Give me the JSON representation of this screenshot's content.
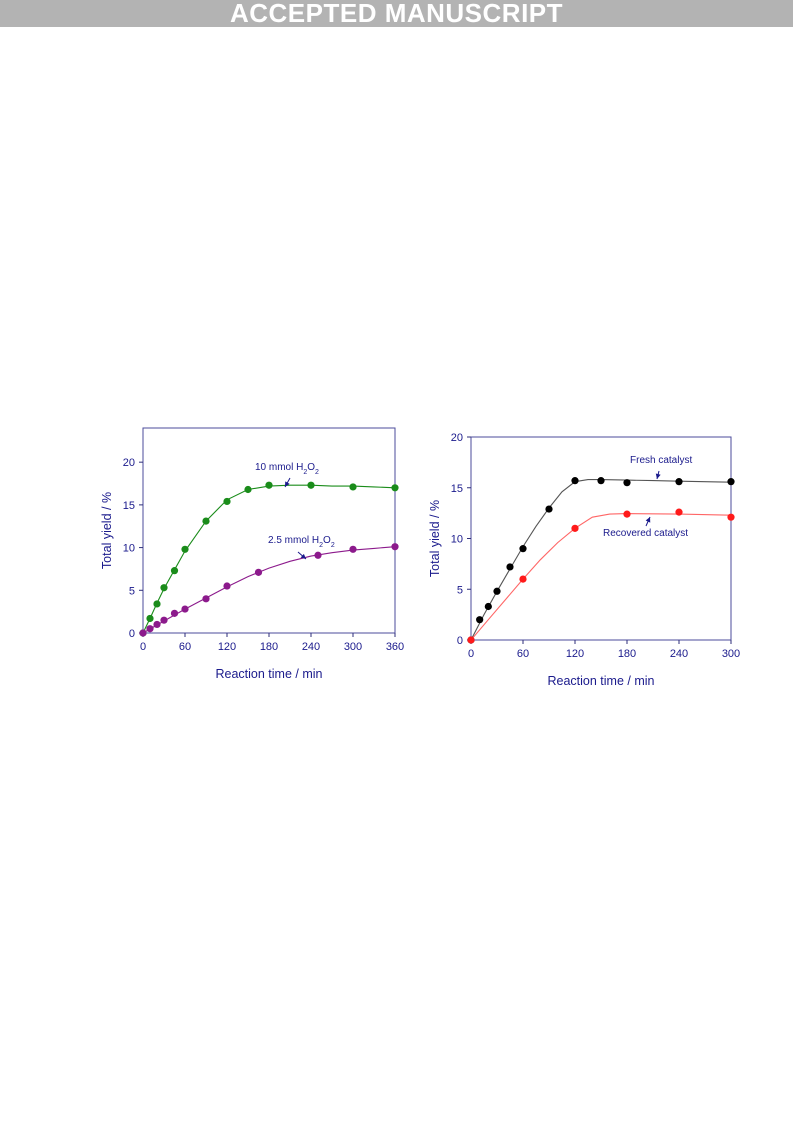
{
  "header": {
    "banner": "ACCEPTED MANUSCRIPT"
  },
  "chart_data": [
    {
      "type": "scatter",
      "xlabel": "Reaction time / min",
      "ylabel": "Total yield / %",
      "xlim": [
        0,
        360
      ],
      "ylim": [
        0,
        24
      ],
      "xticks": [
        0,
        60,
        120,
        180,
        240,
        300,
        360
      ],
      "yticks": [
        0,
        5,
        10,
        15,
        20
      ],
      "grid": false,
      "series": [
        {
          "name": "10 mmol H2O2",
          "color": "#1a8c1a",
          "x": [
            0,
            10,
            20,
            30,
            45,
            60,
            90,
            120,
            150,
            180,
            240,
            300,
            360
          ],
          "y": [
            0,
            1.7,
            3.4,
            5.3,
            7.3,
            9.8,
            13.1,
            15.4,
            16.8,
            17.3,
            17.3,
            17.1,
            17.0
          ]
        },
        {
          "name": "2.5 mmol H2O2",
          "color": "#8c1a8c",
          "x": [
            0,
            10,
            20,
            30,
            45,
            60,
            90,
            120,
            165,
            250,
            300,
            360
          ],
          "y": [
            0,
            0.5,
            1.0,
            1.5,
            2.3,
            2.8,
            4.0,
            5.5,
            7.1,
            9.1,
            9.8,
            10.1
          ]
        }
      ],
      "annotations": [
        {
          "text": "10 mmol H",
          "sub1": "2",
          "mid": "O",
          "sub2": "2",
          "series": 0
        },
        {
          "text": "2.5 mmol H",
          "sub1": "2",
          "mid": "O",
          "sub2": "2",
          "series": 1
        }
      ]
    },
    {
      "type": "scatter",
      "xlabel": "Reaction time / min",
      "ylabel": "Total yield / %",
      "xlim": [
        0,
        300
      ],
      "ylim": [
        0,
        20
      ],
      "xticks": [
        0,
        60,
        120,
        180,
        240,
        300
      ],
      "yticks": [
        0,
        5,
        10,
        15,
        20
      ],
      "grid": false,
      "series": [
        {
          "name": "Fresh catalyst",
          "color": "#000000",
          "curve_color": "#555555",
          "x": [
            0,
            10,
            20,
            30,
            45,
            60,
            90,
            120,
            150,
            180,
            240,
            300
          ],
          "y": [
            0,
            2.0,
            3.3,
            4.8,
            7.2,
            9.0,
            12.9,
            15.7,
            15.7,
            15.5,
            15.6,
            15.6
          ]
        },
        {
          "name": "Recovered catalyst",
          "color": "#ff1a1a",
          "curve_color": "#ff6666",
          "x": [
            0,
            60,
            120,
            180,
            240,
            300
          ],
          "y": [
            0,
            6.0,
            11.0,
            12.4,
            12.6,
            12.1
          ]
        }
      ],
      "annotations": [
        {
          "text": "Fresh catalyst",
          "series": 0
        },
        {
          "text": "Recovered catalyst",
          "series": 1
        }
      ]
    }
  ]
}
